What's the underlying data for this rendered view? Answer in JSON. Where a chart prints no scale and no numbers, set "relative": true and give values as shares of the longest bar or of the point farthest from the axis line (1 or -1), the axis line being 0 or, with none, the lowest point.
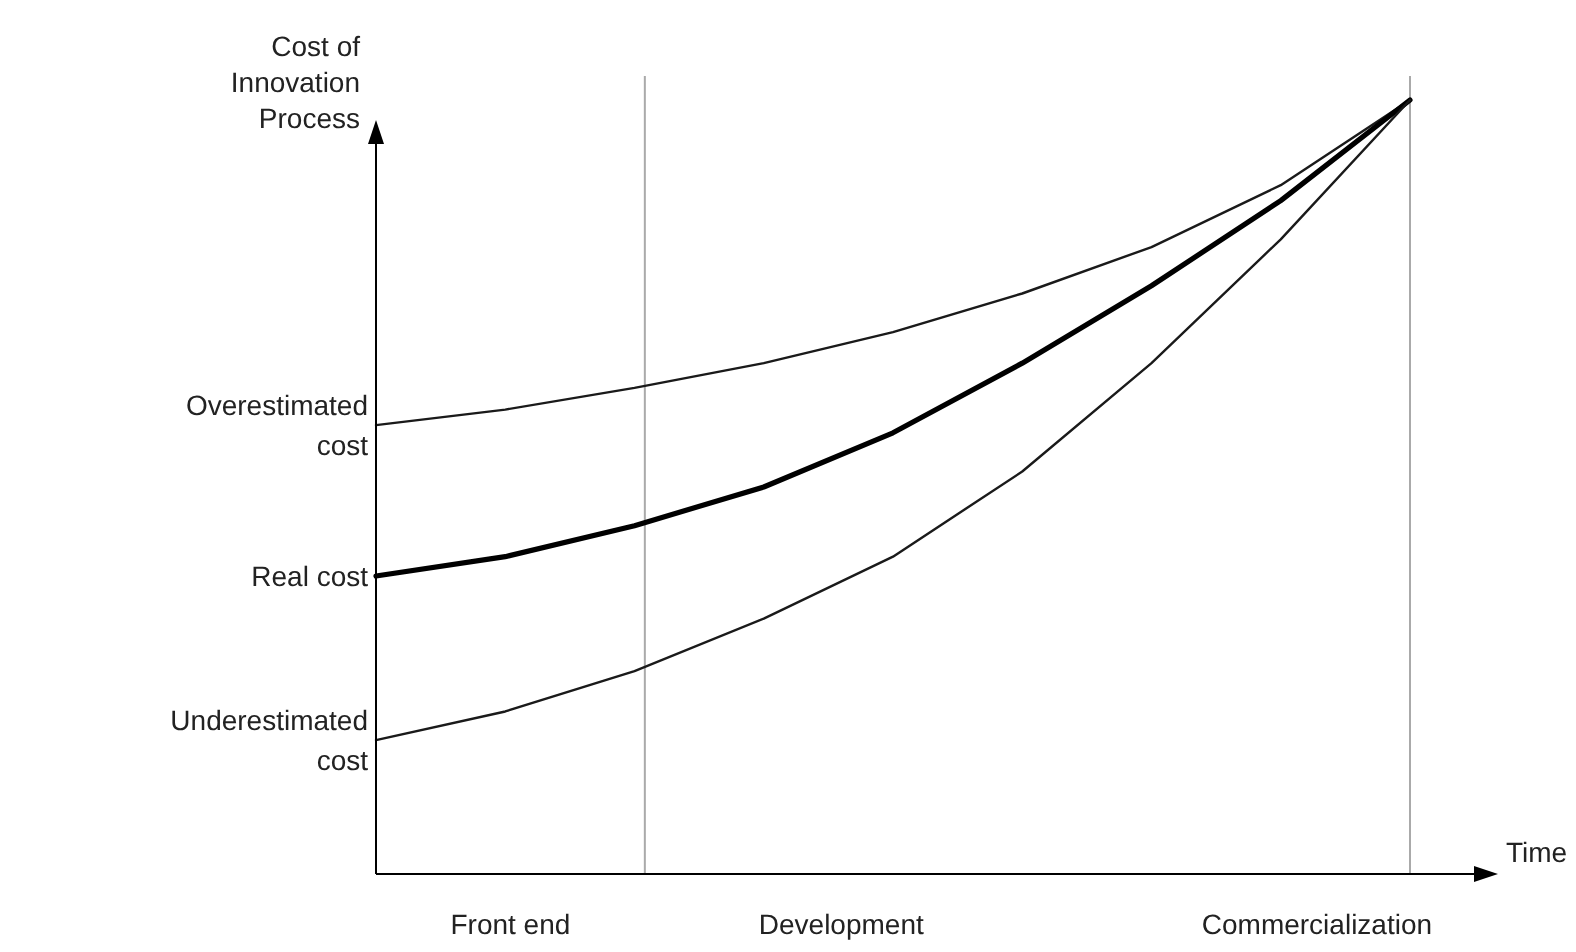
{
  "chart_data": {
    "type": "line",
    "relative": true,
    "ylabel": "Cost of Innovation Process",
    "xlabel": "Time",
    "marker": "none",
    "line_style": "solid",
    "categories": [
      null,
      null,
      null,
      null,
      null,
      null,
      null,
      null,
      null
    ],
    "series": [
      {
        "name": "Overestimated cost",
        "color": "#1a1a1a",
        "values": [
          0.58,
          0.6,
          0.628,
          0.66,
          0.7,
          0.75,
          0.81,
          0.89,
          1
        ]
      },
      {
        "name": "Real cost",
        "color": "#000000",
        "values": [
          0.385,
          0.41,
          0.45,
          0.5,
          0.57,
          0.66,
          0.76,
          0.87,
          1
        ]
      },
      {
        "name": "Underestimated cost",
        "color": "#1a1a1a",
        "values": [
          0.173,
          0.21,
          0.262,
          0.33,
          0.41,
          0.52,
          0.66,
          0.82,
          1
        ]
      }
    ],
    "annotations": [
      "Front end",
      "Development",
      "Commercialization"
    ]
  }
}
